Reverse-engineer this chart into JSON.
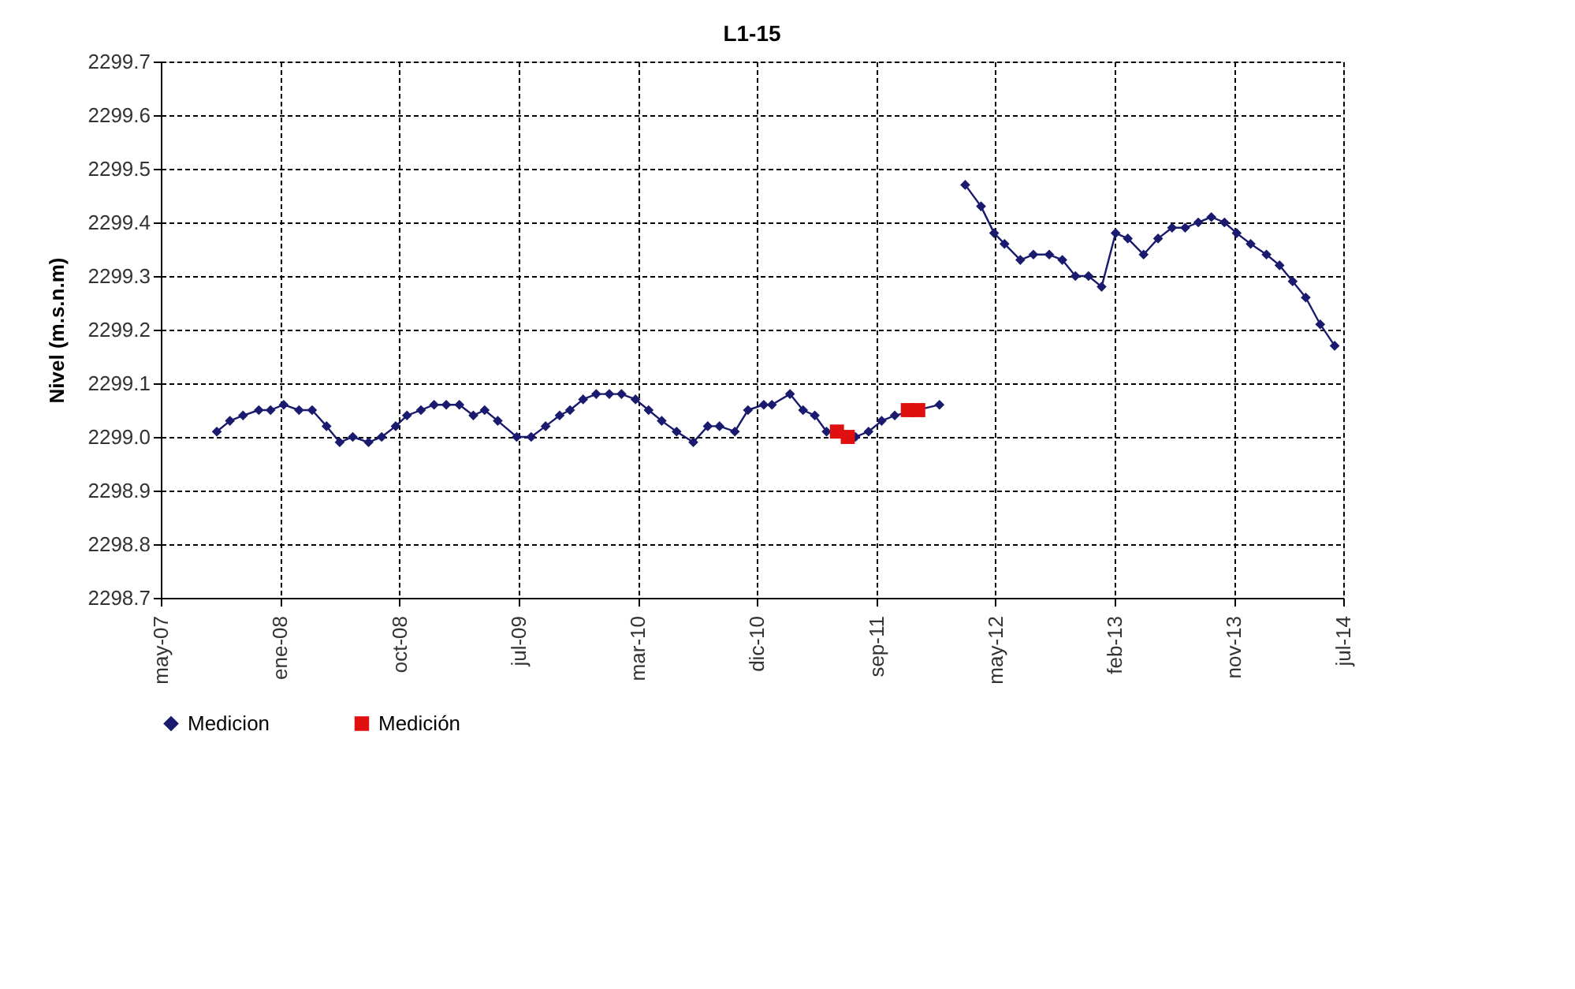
{
  "chart_data": {
    "type": "line",
    "title": "L1-15",
    "ylabel": "Nivel (m.s.n.m)",
    "xlim": [
      "2007-05-01",
      "2014-07-01"
    ],
    "xticks": [
      {
        "value": "2007-05-01",
        "label": "may-07"
      },
      {
        "value": "2008-01-20",
        "label": "ene-08"
      },
      {
        "value": "2008-10-10",
        "label": "oct-08"
      },
      {
        "value": "2009-07-01",
        "label": "jul-09"
      },
      {
        "value": "2010-03-22",
        "label": "mar-10"
      },
      {
        "value": "2010-12-11",
        "label": "dic-10"
      },
      {
        "value": "2011-09-01",
        "label": "sep-11"
      },
      {
        "value": "2012-05-22",
        "label": "may-12"
      },
      {
        "value": "2013-02-10",
        "label": "feb-13"
      },
      {
        "value": "2013-11-01",
        "label": "nov-13"
      },
      {
        "value": "2014-07-01",
        "label": "jul-14"
      }
    ],
    "ylim": [
      2298.7,
      2299.7
    ],
    "yticks": [
      {
        "value": 2298.7,
        "label": "2298.7"
      },
      {
        "value": 2298.8,
        "label": "2298.8"
      },
      {
        "value": 2298.9,
        "label": "2298.9"
      },
      {
        "value": 2299.0,
        "label": "2299.0"
      },
      {
        "value": 2299.1,
        "label": "2299.1"
      },
      {
        "value": 2299.2,
        "label": "2299.2"
      },
      {
        "value": 2299.3,
        "label": "2299.3"
      },
      {
        "value": 2299.4,
        "label": "2299.4"
      },
      {
        "value": 2299.5,
        "label": "2299.5"
      },
      {
        "value": 2299.6,
        "label": "2299.6"
      },
      {
        "value": 2299.7,
        "label": "2299.7"
      }
    ],
    "grid": true,
    "legend": "bottom",
    "series": [
      {
        "name": "Medicion",
        "type": "line",
        "marker": "diamond",
        "color": "#1a1a6e",
        "x": [
          "2007-09-02",
          "2007-10-01",
          "2007-10-30",
          "2007-12-04",
          "2007-12-30",
          "2008-01-28",
          "2008-03-02",
          "2008-03-31",
          "2008-05-02",
          "2008-05-31",
          "2008-06-29",
          "2008-08-03",
          "2008-09-01",
          "2008-10-02",
          "2008-10-27",
          "2008-11-27",
          "2008-12-26",
          "2009-01-22",
          "2009-02-20",
          "2009-03-23",
          "2009-04-17",
          "2009-05-16",
          "2009-06-27",
          "2009-07-29",
          "2009-08-30",
          "2009-09-30",
          "2009-10-23",
          "2009-11-21",
          "2009-12-20",
          "2010-01-18",
          "2010-02-14",
          "2010-03-17",
          "2010-04-15",
          "2010-05-14",
          "2010-06-16",
          "2010-07-23",
          "2010-08-24",
          "2010-09-19",
          "2010-10-23",
          "2010-11-21",
          "2010-12-26",
          "2011-01-13",
          "2011-02-22",
          "2011-03-23",
          "2011-04-18",
          "2011-05-14",
          "2011-07-17",
          "2011-08-15",
          "2011-09-13",
          "2011-10-12",
          "2012-01-19",
          "2012-02-15",
          "2012-03-16",
          "2012-04-20",
          "2012-05-19",
          "2012-06-11",
          "2012-07-16",
          "2012-08-14",
          "2012-09-18",
          "2012-10-17",
          "2012-11-15",
          "2012-12-14",
          "2013-01-12",
          "2013-02-12",
          "2013-03-11",
          "2013-04-15",
          "2013-05-17",
          "2013-06-17",
          "2013-07-16",
          "2013-08-14",
          "2013-09-12",
          "2013-10-11",
          "2013-11-07",
          "2013-12-08",
          "2014-01-12",
          "2014-02-10",
          "2014-03-11",
          "2014-04-09",
          "2014-05-11",
          "2014-06-12"
        ],
        "values": [
          2299.01,
          2299.03,
          2299.04,
          2299.05,
          2299.05,
          2299.06,
          2299.05,
          2299.05,
          2299.02,
          2298.99,
          2299.0,
          2298.99,
          2299.0,
          2299.02,
          2299.04,
          2299.05,
          2299.06,
          2299.06,
          2299.06,
          2299.04,
          2299.05,
          2299.03,
          2299.0,
          2299.0,
          2299.02,
          2299.04,
          2299.05,
          2299.07,
          2299.08,
          2299.08,
          2299.08,
          2299.07,
          2299.05,
          2299.03,
          2299.01,
          2298.99,
          2299.02,
          2299.02,
          2299.01,
          2299.05,
          2299.06,
          2299.06,
          2299.08,
          2299.05,
          2299.04,
          2299.01,
          2299.0,
          2299.01,
          2299.03,
          2299.04,
          2299.06,
          null,
          2299.47,
          2299.43,
          2299.38,
          2299.36,
          2299.33,
          2299.34,
          2299.34,
          2299.33,
          2299.3,
          2299.3,
          2299.28,
          2299.38,
          2299.37,
          2299.34,
          2299.37,
          2299.39,
          2299.39,
          2299.4,
          2299.41,
          2299.4,
          2299.38,
          2299.36,
          2299.34,
          2299.32,
          2299.29,
          2299.26,
          2299.21,
          2299.17
        ]
      },
      {
        "name": "Medición",
        "type": "scatter",
        "marker": "square",
        "color": "#e01010",
        "x": [
          "2011-06-06",
          "2011-06-30",
          "2011-11-10",
          "2011-12-03"
        ],
        "values": [
          2299.01,
          2299.0,
          2299.05,
          2299.05
        ]
      }
    ]
  }
}
